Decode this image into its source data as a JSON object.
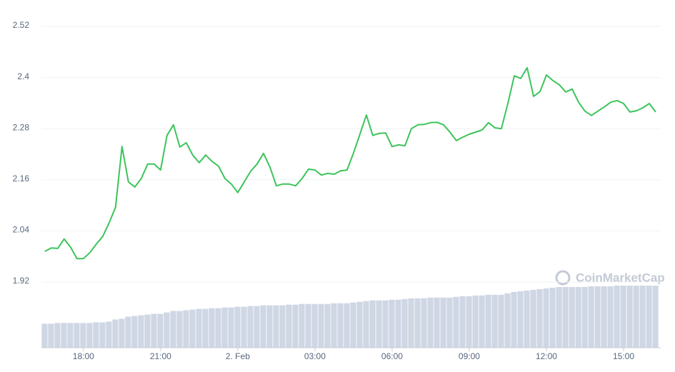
{
  "chart_data": {
    "type": "line",
    "watermark": "CoinMarketCap",
    "color": "#3cc45a",
    "volume_color": "#cfd6e4",
    "grid": true,
    "ylim": [
      1.92,
      2.52
    ],
    "yticks": [
      1.92,
      2.04,
      2.16,
      2.28,
      2.4,
      2.52
    ],
    "categories": [
      null,
      null,
      null,
      null,
      null,
      null,
      "18:00",
      null,
      null,
      null,
      null,
      null,
      null,
      null,
      null,
      null,
      null,
      null,
      "21:00",
      null,
      null,
      null,
      null,
      null,
      null,
      null,
      null,
      null,
      null,
      null,
      "2. Feb",
      null,
      null,
      null,
      null,
      null,
      null,
      null,
      null,
      null,
      null,
      null,
      "03:00",
      null,
      null,
      null,
      null,
      null,
      null,
      null,
      null,
      null,
      null,
      null,
      "06:00",
      null,
      null,
      null,
      null,
      null,
      null,
      null,
      null,
      null,
      null,
      null,
      "09:00",
      null,
      null,
      null,
      null,
      null,
      null,
      null,
      null,
      null,
      null,
      null,
      "12:00",
      null,
      null,
      null,
      null,
      null,
      null,
      null,
      null,
      null,
      null,
      null,
      "15:00",
      null,
      null,
      null,
      null,
      null
    ],
    "values": [
      1.992,
      2.0,
      1.999,
      2.021,
      2.002,
      1.975,
      1.975,
      1.989,
      2.009,
      2.027,
      2.059,
      2.096,
      2.238,
      2.155,
      2.143,
      2.163,
      2.197,
      2.197,
      2.183,
      2.264,
      2.289,
      2.237,
      2.247,
      2.218,
      2.2,
      2.218,
      2.203,
      2.192,
      2.163,
      2.15,
      2.13,
      2.155,
      2.18,
      2.197,
      2.222,
      2.19,
      2.146,
      2.15,
      2.15,
      2.146,
      2.163,
      2.185,
      2.183,
      2.171,
      2.175,
      2.173,
      2.181,
      2.183,
      2.223,
      2.267,
      2.312,
      2.264,
      2.269,
      2.27,
      2.238,
      2.242,
      2.24,
      2.28,
      2.289,
      2.29,
      2.294,
      2.295,
      2.289,
      2.272,
      2.252,
      2.26,
      2.267,
      2.272,
      2.277,
      2.294,
      2.282,
      2.28,
      2.339,
      2.404,
      2.398,
      2.423,
      2.356,
      2.367,
      2.406,
      2.393,
      2.383,
      2.366,
      2.373,
      2.342,
      2.321,
      2.311,
      2.321,
      2.331,
      2.342,
      2.346,
      2.339,
      2.319,
      2.322,
      2.329,
      2.339,
      2.319
    ],
    "volume": [
      34,
      34,
      35,
      35,
      35,
      35,
      35,
      35,
      36,
      36,
      37,
      40,
      41,
      44,
      45,
      46,
      47,
      48,
      48,
      50,
      52,
      52,
      53,
      54,
      55,
      55,
      56,
      56,
      57,
      57,
      58,
      58,
      59,
      59,
      60,
      60,
      60,
      60,
      61,
      61,
      62,
      62,
      62,
      62,
      62,
      63,
      63,
      63,
      64,
      65,
      66,
      67,
      67,
      67,
      68,
      68,
      69,
      70,
      70,
      70,
      71,
      71,
      71,
      71,
      72,
      73,
      73,
      74,
      74,
      75,
      75,
      75,
      77,
      79,
      80,
      81,
      82,
      83,
      84,
      85,
      86,
      86,
      86,
      86,
      86,
      87,
      87,
      87,
      87,
      88,
      88,
      88,
      88,
      88,
      88,
      88
    ]
  }
}
